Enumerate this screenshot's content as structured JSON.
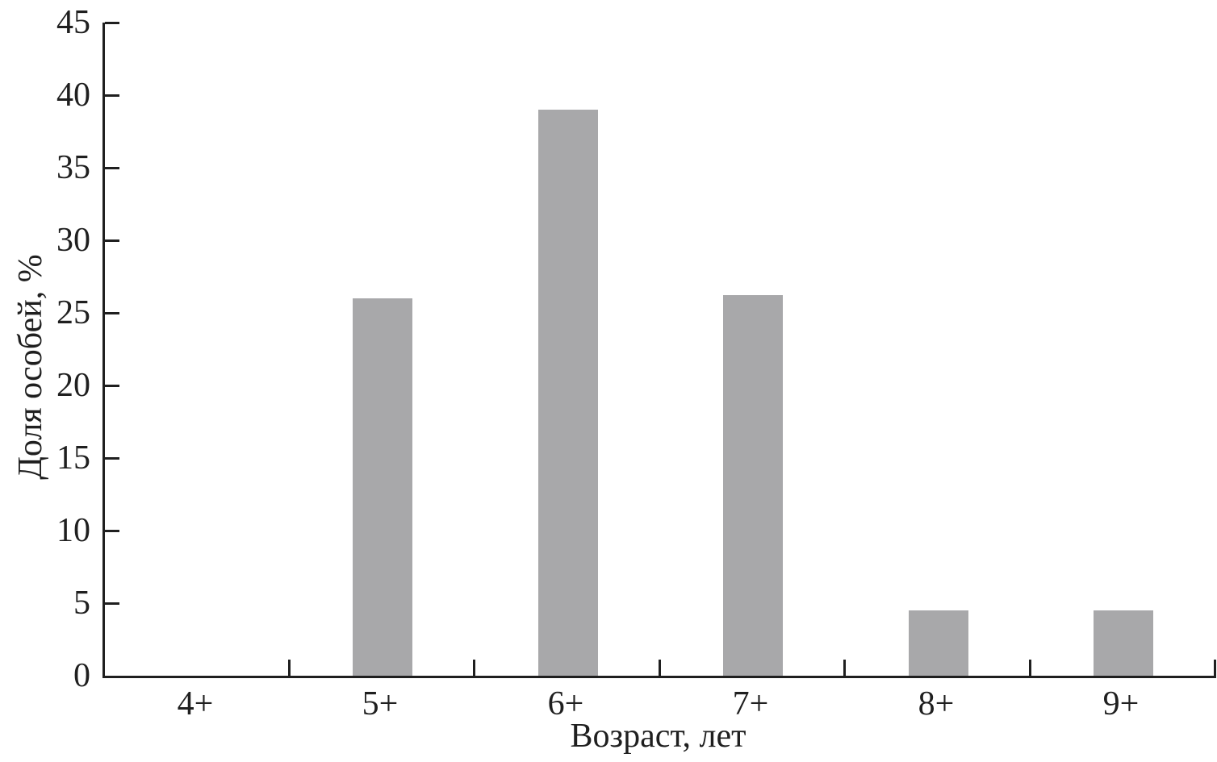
{
  "chart_data": {
    "type": "bar",
    "title": "",
    "categories": [
      "4+",
      "5+",
      "6+",
      "7+",
      "8+",
      "9+"
    ],
    "values": [
      0,
      26,
      39,
      26.2,
      4.5,
      4.5
    ],
    "xlabel": "Возраст, лет",
    "ylabel": "Доля особей, %",
    "ylim": [
      0,
      45
    ],
    "ytick_step": 5,
    "ytick_labels": [
      "0",
      "5",
      "10",
      "15",
      "20",
      "25",
      "30",
      "35",
      "40",
      "45"
    ],
    "grid": "off",
    "legend": "none",
    "bar_color": "#a8a8aa",
    "axis_color": "#1f1f1f",
    "background_color": "#ffffff"
  }
}
